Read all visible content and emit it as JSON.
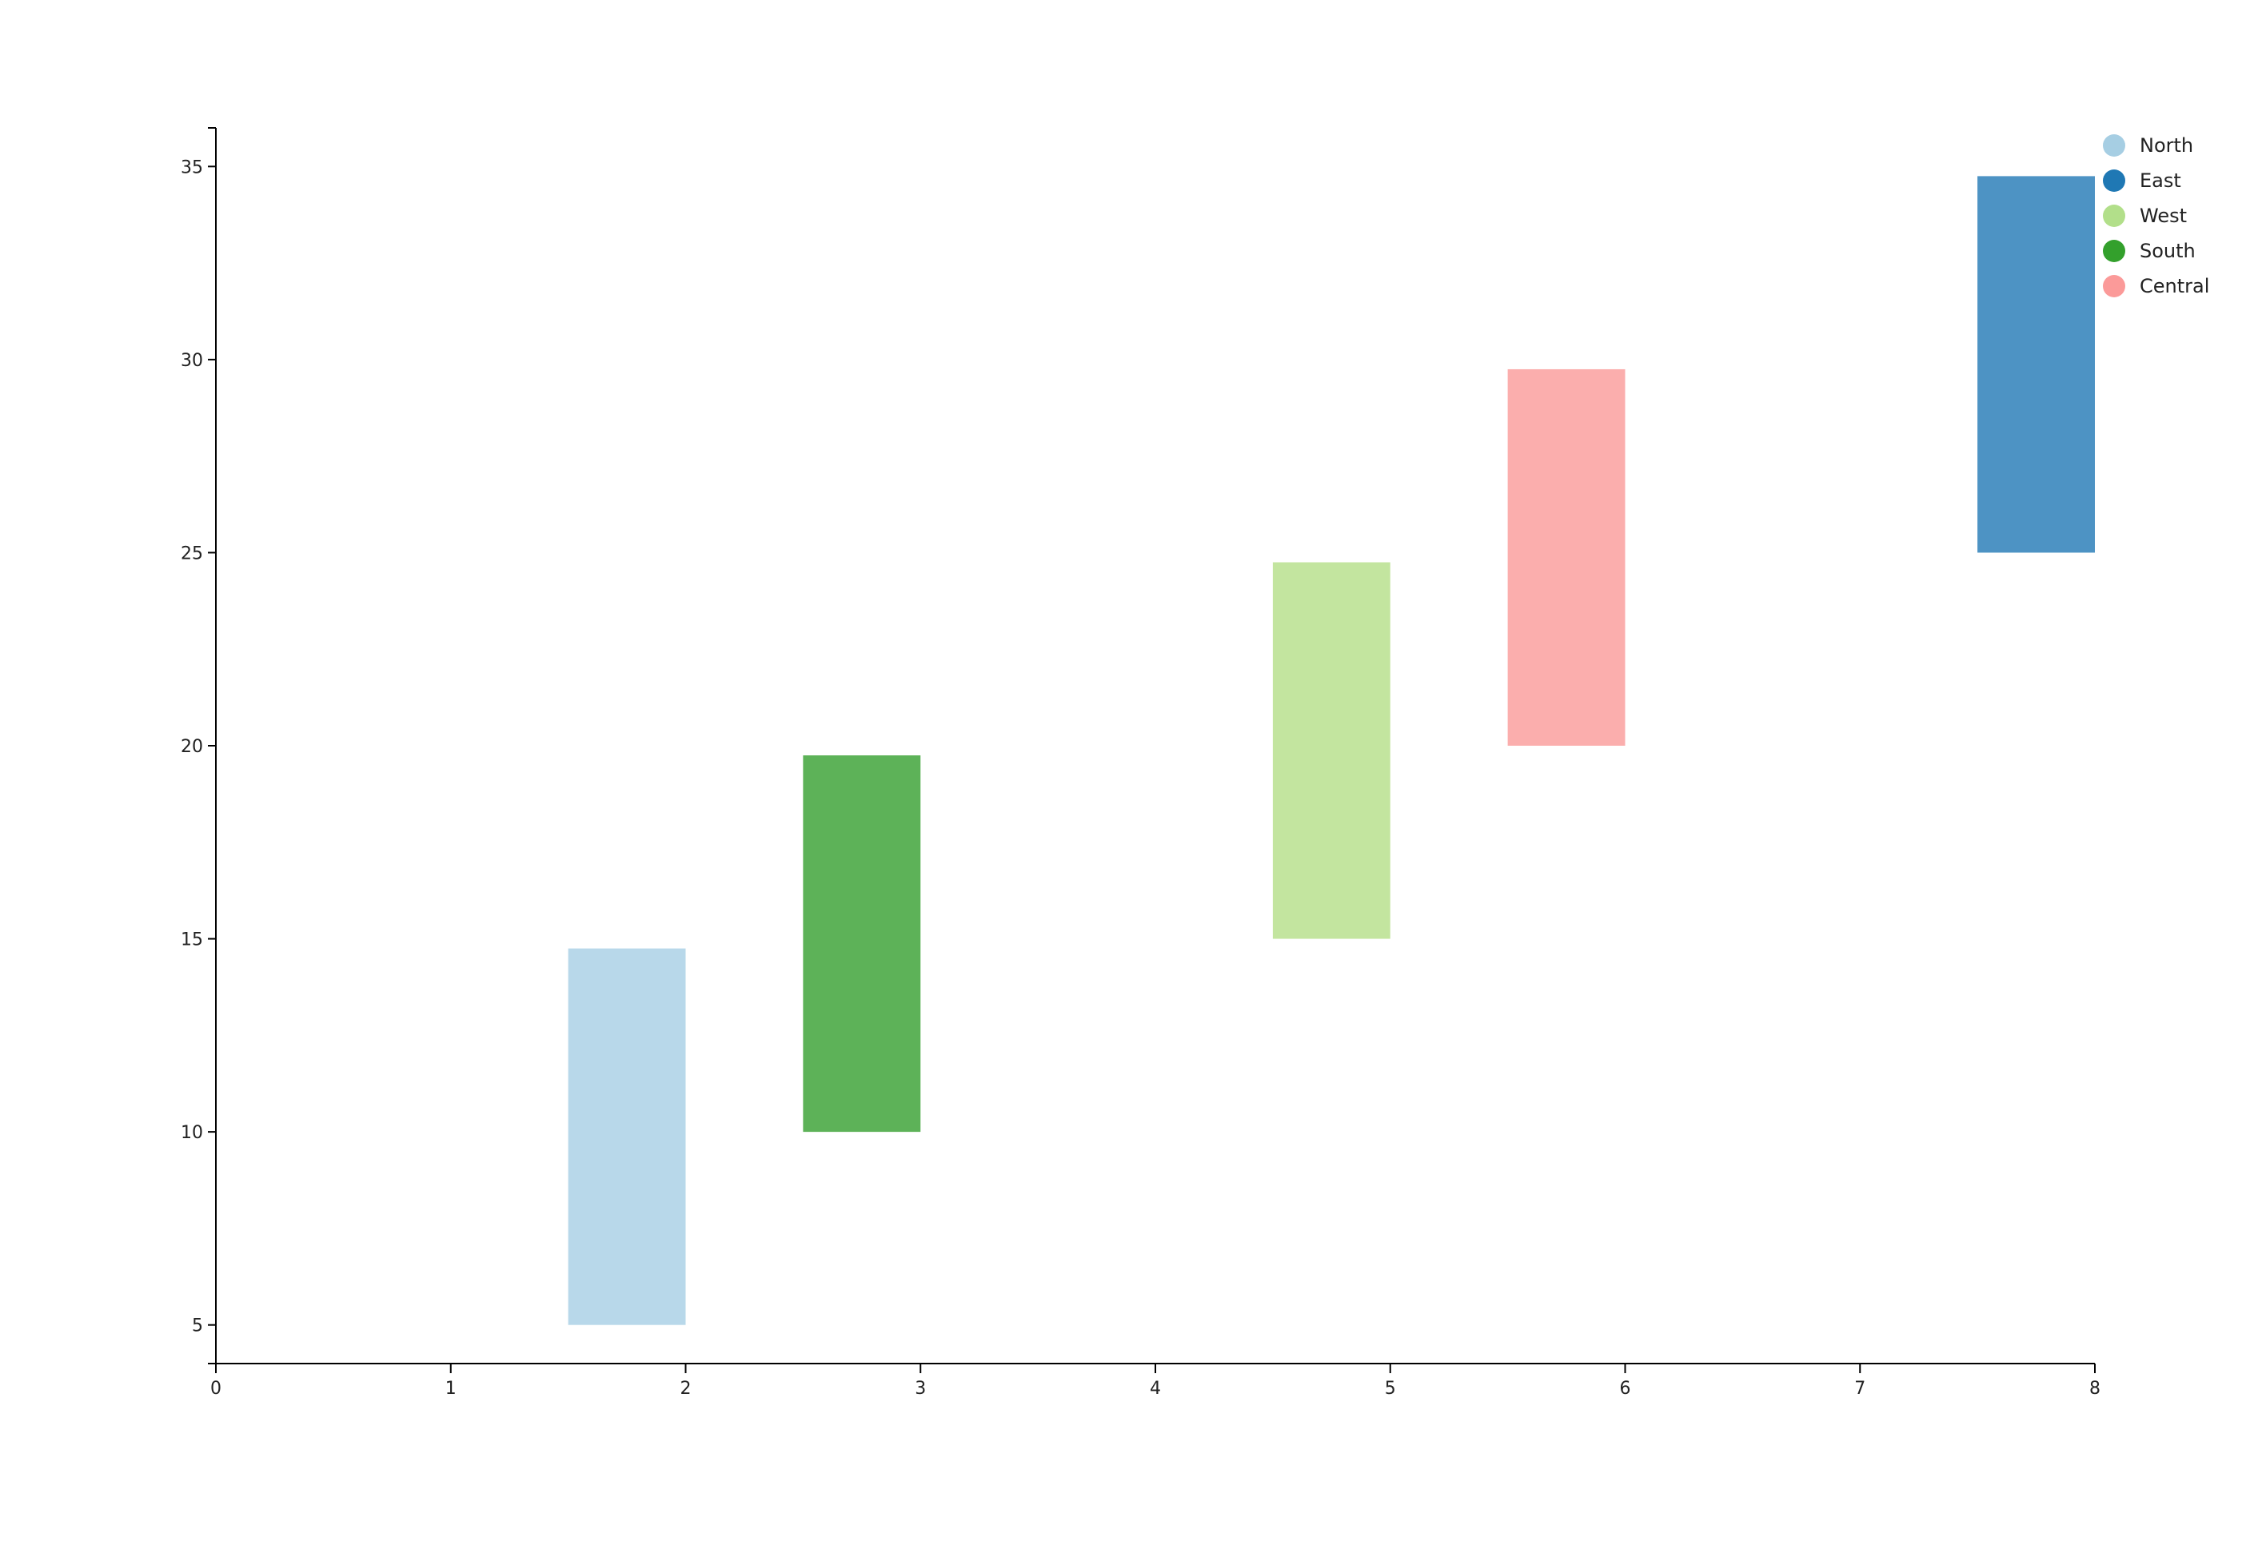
{
  "chart_data": {
    "type": "bar",
    "subtype": "floating-range",
    "title": "",
    "xlabel": "",
    "ylabel": "",
    "xlim": [
      0,
      8
    ],
    "ylim": [
      4,
      36
    ],
    "xticks": [
      "0",
      "1",
      "2",
      "3",
      "4",
      "5",
      "6",
      "7",
      "8"
    ],
    "yticks": [
      "5",
      "10",
      "15",
      "20",
      "25",
      "30",
      "35"
    ],
    "grid": false,
    "legend_position": "top-right",
    "series": [
      {
        "name": "North",
        "color": "#a6cee3",
        "bar_color": "#b8d8ea",
        "x_start": 1.5,
        "x_end": 2.0,
        "y_low": 5,
        "y_high": 14.75
      },
      {
        "name": "East",
        "color": "#1f78b4",
        "bar_color": "#4d93c4",
        "x_start": 7.5,
        "x_end": 8.0,
        "y_low": 25,
        "y_high": 34.75
      },
      {
        "name": "West",
        "color": "#b2df8a",
        "bar_color": "#c3e59f",
        "x_start": 4.5,
        "x_end": 5.0,
        "y_low": 15,
        "y_high": 24.75
      },
      {
        "name": "South",
        "color": "#33a02c",
        "bar_color": "#5db258",
        "x_start": 2.5,
        "x_end": 3.0,
        "y_low": 10,
        "y_high": 19.75
      },
      {
        "name": "Central",
        "color": "#fb9a99",
        "bar_color": "#fbaead",
        "x_start": 5.5,
        "x_end": 6.0,
        "y_low": 20,
        "y_high": 29.75
      }
    ]
  }
}
